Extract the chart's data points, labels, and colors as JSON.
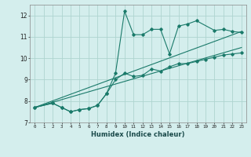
{
  "xlabel": "Humidex (Indice chaleur)",
  "background_color": "#d4eeed",
  "grid_color": "#aed4d0",
  "line_color": "#1a7a6a",
  "xlim": [
    -0.5,
    23.5
  ],
  "ylim": [
    7,
    12.5
  ],
  "yticks": [
    7,
    8,
    9,
    10,
    11,
    12
  ],
  "xticks": [
    0,
    1,
    2,
    3,
    4,
    5,
    6,
    7,
    8,
    9,
    10,
    11,
    12,
    13,
    14,
    15,
    16,
    17,
    18,
    19,
    20,
    21,
    22,
    23
  ],
  "series1_x": [
    0,
    2,
    3,
    4,
    5,
    6,
    7,
    8,
    9,
    10,
    11,
    12,
    13,
    14,
    15,
    16,
    17,
    18,
    20,
    21,
    22,
    23
  ],
  "series1_y": [
    7.7,
    7.9,
    7.7,
    7.5,
    7.6,
    7.65,
    7.8,
    8.35,
    9.3,
    12.2,
    11.1,
    11.1,
    11.35,
    11.35,
    10.2,
    11.5,
    11.6,
    11.75,
    11.3,
    11.35,
    11.25,
    11.2
  ],
  "series2_x": [
    0,
    2,
    3,
    4,
    5,
    6,
    7,
    8,
    9,
    10,
    11,
    12,
    13,
    14,
    15,
    16,
    17,
    18,
    19,
    20,
    21,
    22,
    23
  ],
  "series2_y": [
    7.7,
    7.9,
    7.7,
    7.5,
    7.6,
    7.65,
    7.8,
    8.35,
    9.0,
    9.3,
    9.15,
    9.2,
    9.5,
    9.4,
    9.6,
    9.75,
    9.75,
    9.85,
    9.95,
    10.05,
    10.15,
    10.2,
    10.25
  ],
  "trend1_x": [
    0,
    23
  ],
  "trend1_y": [
    7.7,
    10.5
  ],
  "trend2_x": [
    0,
    23
  ],
  "trend2_y": [
    7.7,
    11.25
  ],
  "figsize": [
    3.2,
    2.0
  ],
  "dpi": 100
}
